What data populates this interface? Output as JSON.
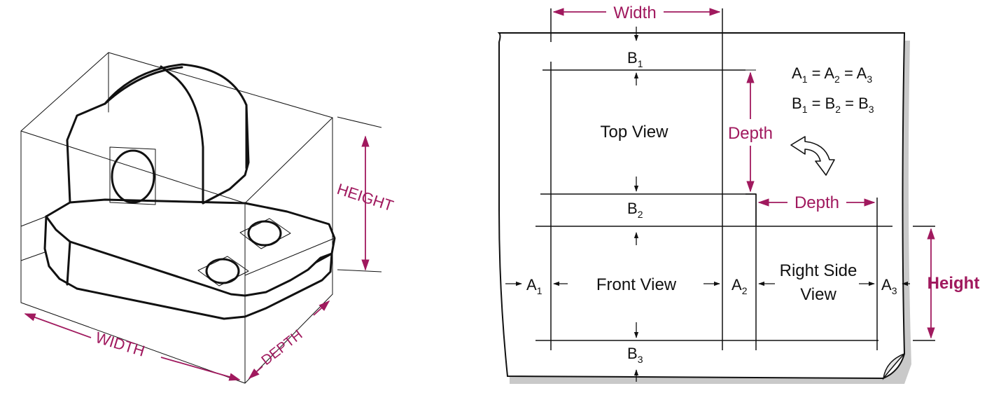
{
  "colors": {
    "accent": "#a0195e",
    "line": "#111111",
    "sheet_shadow": "#c9c9c9"
  },
  "isometric": {
    "height_label": "HEIGHT",
    "width_label": "WIDTH",
    "depth_label": "DEPTH"
  },
  "projection": {
    "width_label": "Width",
    "depth_label_top": "Depth",
    "depth_label_side": "Depth",
    "height_label": "Height",
    "top_view_label": "Top View",
    "front_view_label": "Front View",
    "side_view_label_line1": "Right Side",
    "side_view_label_line2": "View",
    "b1": {
      "base": "B",
      "sub": "1"
    },
    "b2": {
      "base": "B",
      "sub": "2"
    },
    "b3": {
      "base": "B",
      "sub": "3"
    },
    "a1": {
      "base": "A",
      "sub": "1"
    },
    "a2": {
      "base": "A",
      "sub": "2"
    },
    "a3": {
      "base": "A",
      "sub": "3"
    },
    "eq_a": {
      "t1": "A",
      "s1": "1",
      "t2": " = A",
      "s2": "2",
      "t3": " = A",
      "s3": "3"
    },
    "eq_b": {
      "t1": "B",
      "s1": "1",
      "t2": " = B",
      "s2": "2",
      "t3": " = B",
      "s3": "3"
    }
  }
}
